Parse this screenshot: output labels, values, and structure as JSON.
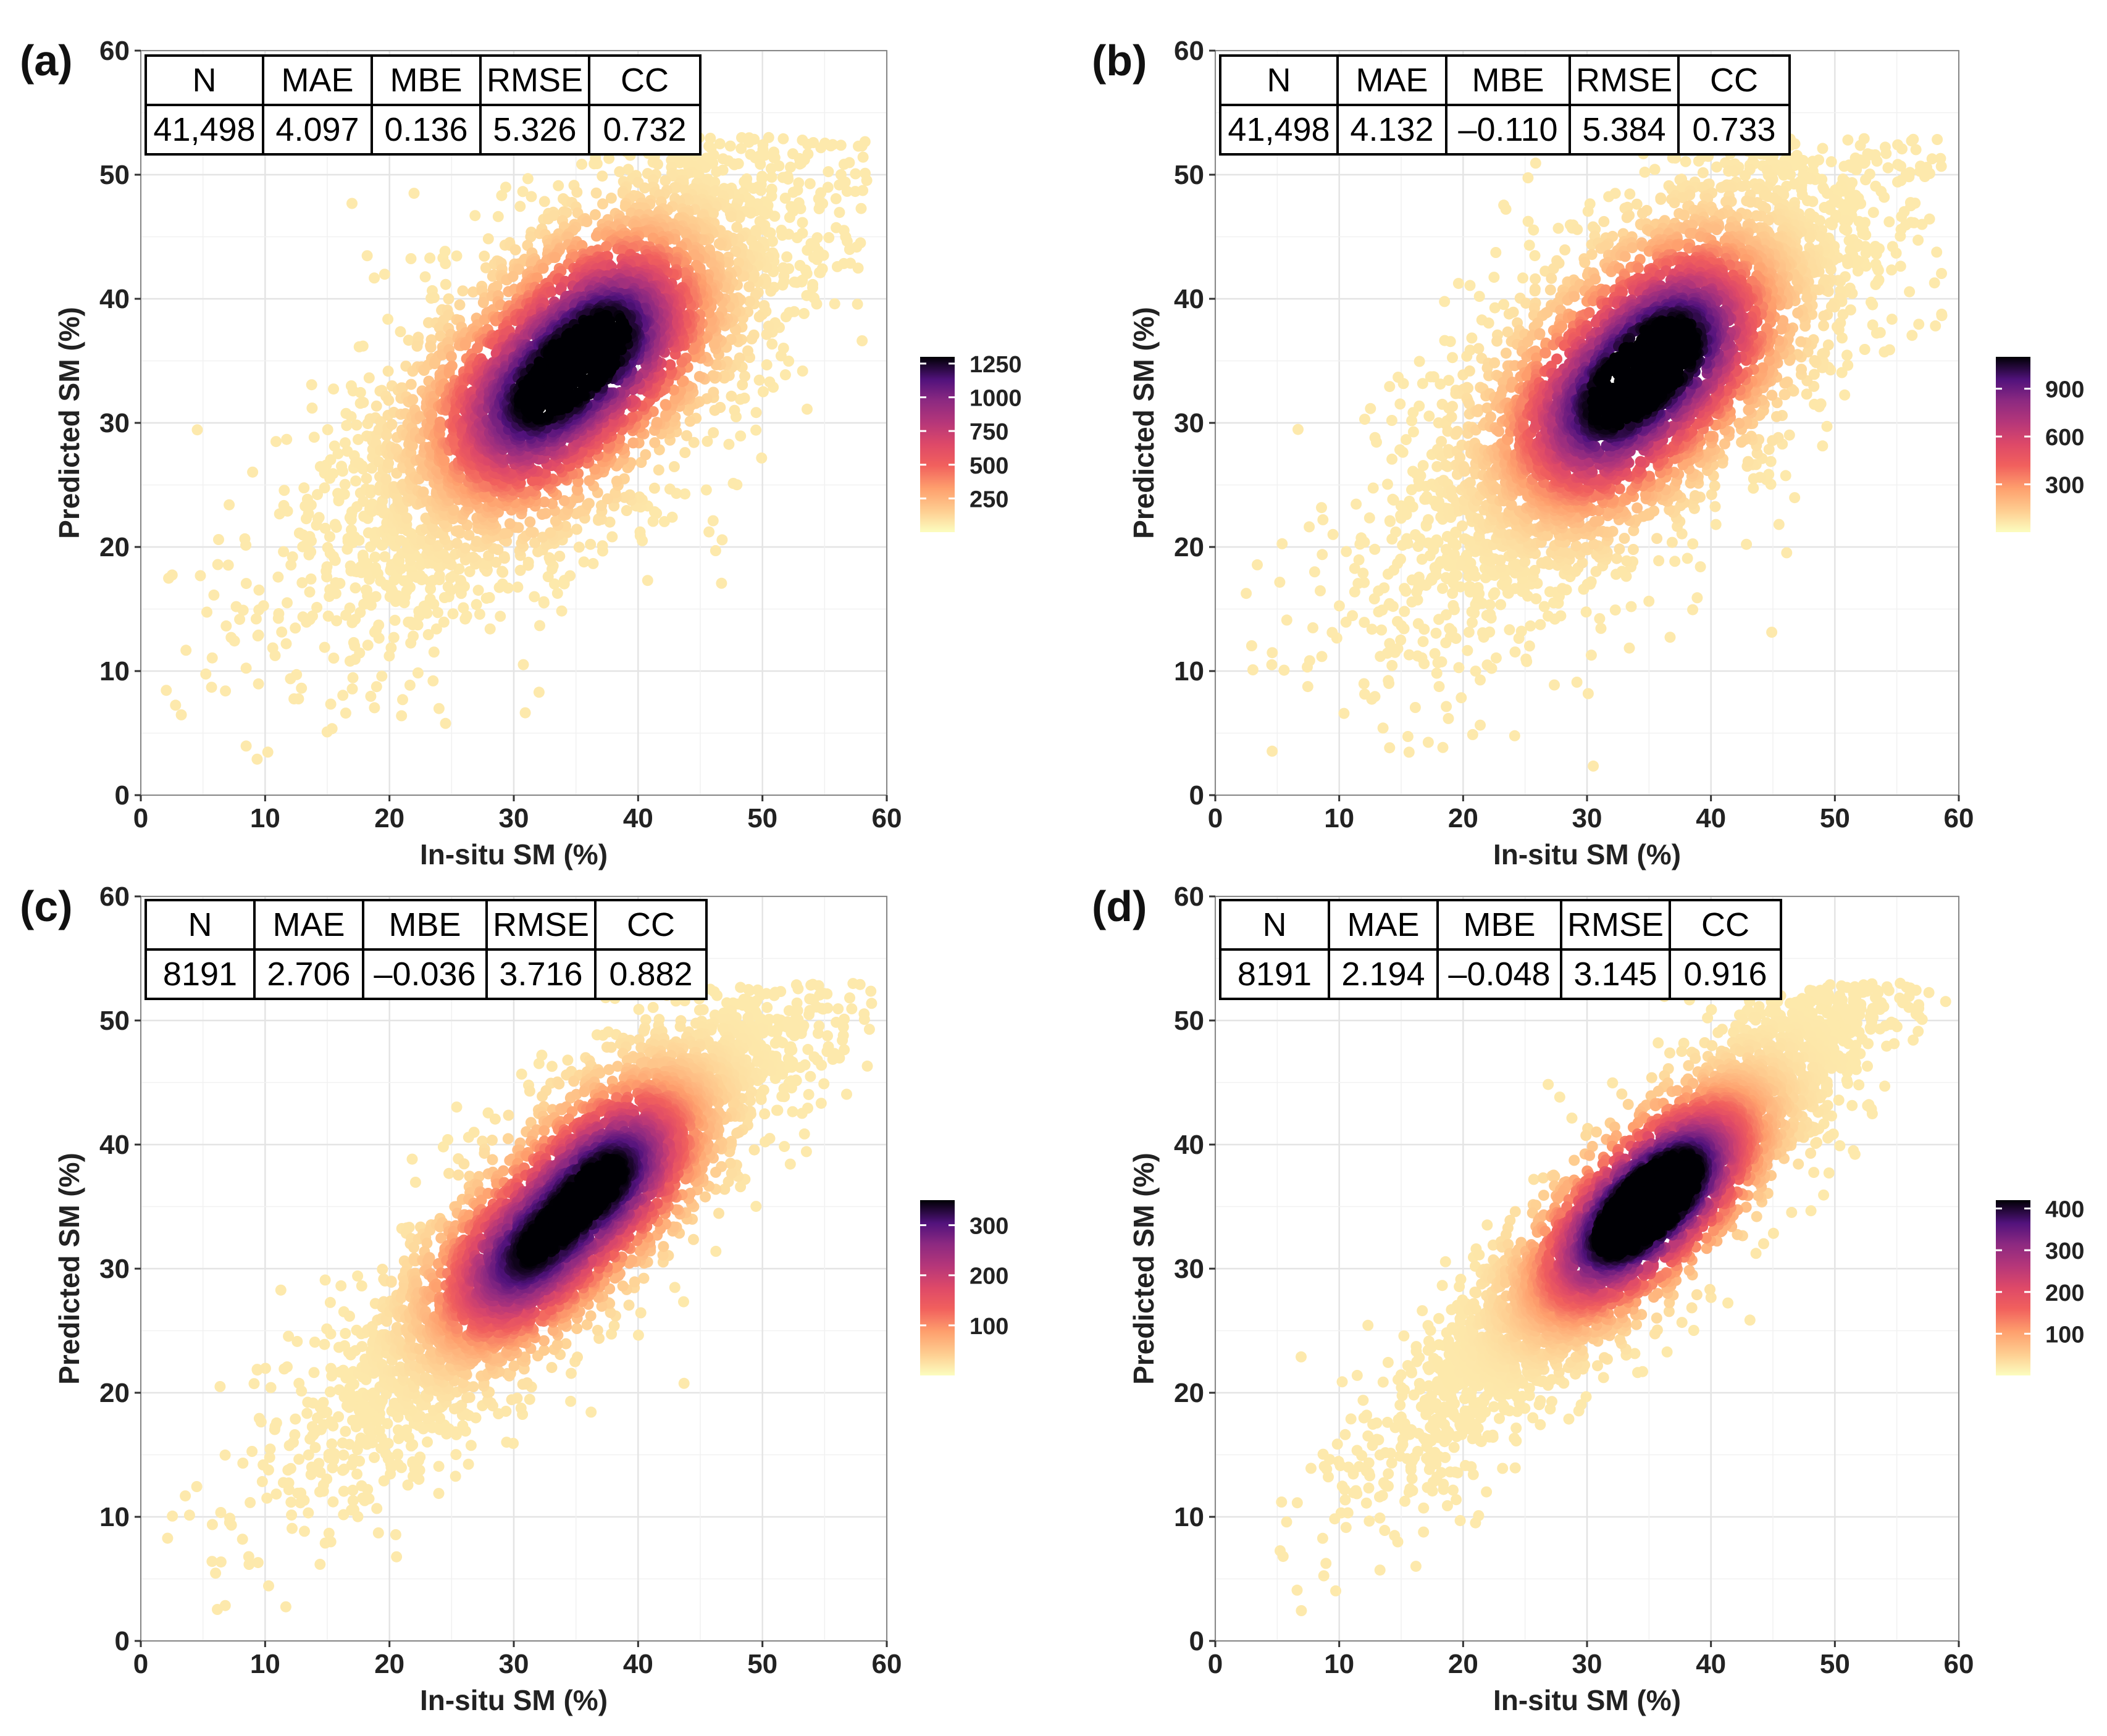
{
  "figure": {
    "description_colors": {
      "low": "#fcfdbf",
      "mid": "#e55c5c",
      "high": "#000004"
    }
  },
  "chart_data": [
    {
      "panel": "(a)",
      "type": "scatter",
      "xlabel": "In-situ SM (%)",
      "ylabel": "Predicted SM (%)",
      "xlim": [
        0,
        60
      ],
      "ylim": [
        0,
        60
      ],
      "xticks": [
        "0",
        "10",
        "20",
        "30",
        "40",
        "50",
        "60"
      ],
      "yticks": [
        "0",
        "10",
        "20",
        "30",
        "40",
        "50",
        "60"
      ],
      "grid": true,
      "stats": {
        "headers": [
          "N",
          "MAE",
          "MBE",
          "RMSE",
          "CC"
        ],
        "values": [
          "41,498",
          "4.097",
          "0.136",
          "5.326",
          "0.732"
        ]
      },
      "colorbar": {
        "labels": [
          "1250",
          "1000",
          "750",
          "500",
          "250"
        ],
        "values": [
          1250,
          1000,
          750,
          500,
          250
        ],
        "min": 0,
        "max": 1300
      },
      "density": {
        "centers": [
          [
            37.5,
            37
          ],
          [
            31.5,
            31.5
          ]
        ],
        "spread": 9.5,
        "corr": 0.732
      }
    },
    {
      "panel": "(b)",
      "type": "scatter",
      "xlabel": "In-situ SM (%)",
      "ylabel": "Predicted SM (%)",
      "xlim": [
        0,
        60
      ],
      "ylim": [
        0,
        60
      ],
      "xticks": [
        "0",
        "10",
        "20",
        "30",
        "40",
        "50",
        "60"
      ],
      "yticks": [
        "0",
        "10",
        "20",
        "30",
        "40",
        "50",
        "60"
      ],
      "grid": true,
      "stats": {
        "headers": [
          "N",
          "MAE",
          "MBE",
          "RMSE",
          "CC"
        ],
        "values": [
          "41,498",
          "4.132",
          "–0.110",
          "5.384",
          "0.733"
        ]
      },
      "colorbar": {
        "labels": [
          "900",
          "600",
          "300"
        ],
        "values": [
          900,
          600,
          300
        ],
        "min": 0,
        "max": 1100
      },
      "density": {
        "centers": [
          [
            37,
            36.5
          ],
          [
            31.5,
            31
          ]
        ],
        "spread": 9.5,
        "corr": 0.733
      }
    },
    {
      "panel": "(c)",
      "type": "scatter",
      "xlabel": "In-situ SM (%)",
      "ylabel": "Predicted SM (%)",
      "xlim": [
        0,
        60
      ],
      "ylim": [
        0,
        60
      ],
      "xticks": [
        "0",
        "10",
        "20",
        "30",
        "40",
        "50",
        "60"
      ],
      "yticks": [
        "0",
        "10",
        "20",
        "30",
        "40",
        "50",
        "60"
      ],
      "grid": true,
      "stats": {
        "headers": [
          "N",
          "MAE",
          "MBE",
          "RMSE",
          "CC"
        ],
        "values": [
          "8191",
          "2.706",
          "–0.036",
          "3.716",
          "0.882"
        ]
      },
      "colorbar": {
        "labels": [
          "300",
          "200",
          "100"
        ],
        "values": [
          300,
          200,
          100
        ],
        "min": 0,
        "max": 350
      },
      "density": {
        "centers": [
          [
            37.5,
            37.5
          ],
          [
            31,
            31
          ]
        ],
        "spread": 9.5,
        "corr": 0.882
      }
    },
    {
      "panel": "(d)",
      "type": "scatter",
      "xlabel": "In-situ SM (%)",
      "ylabel": "Predicted SM (%)",
      "xlim": [
        0,
        60
      ],
      "ylim": [
        0,
        60
      ],
      "xticks": [
        "0",
        "10",
        "20",
        "30",
        "40",
        "50",
        "60"
      ],
      "yticks": [
        "0",
        "10",
        "20",
        "30",
        "40",
        "50",
        "60"
      ],
      "grid": true,
      "stats": {
        "headers": [
          "N",
          "MAE",
          "MBE",
          "RMSE",
          "CC"
        ],
        "values": [
          "8191",
          "2.194",
          "–0.048",
          "3.145",
          "0.916"
        ]
      },
      "colorbar": {
        "labels": [
          "400",
          "300",
          "200",
          "100"
        ],
        "values": [
          400,
          300,
          200,
          100
        ],
        "min": 0,
        "max": 420
      },
      "density": {
        "centers": [
          [
            37,
            37
          ],
          [
            32.5,
            33
          ]
        ],
        "spread": 9.5,
        "corr": 0.916
      }
    }
  ]
}
